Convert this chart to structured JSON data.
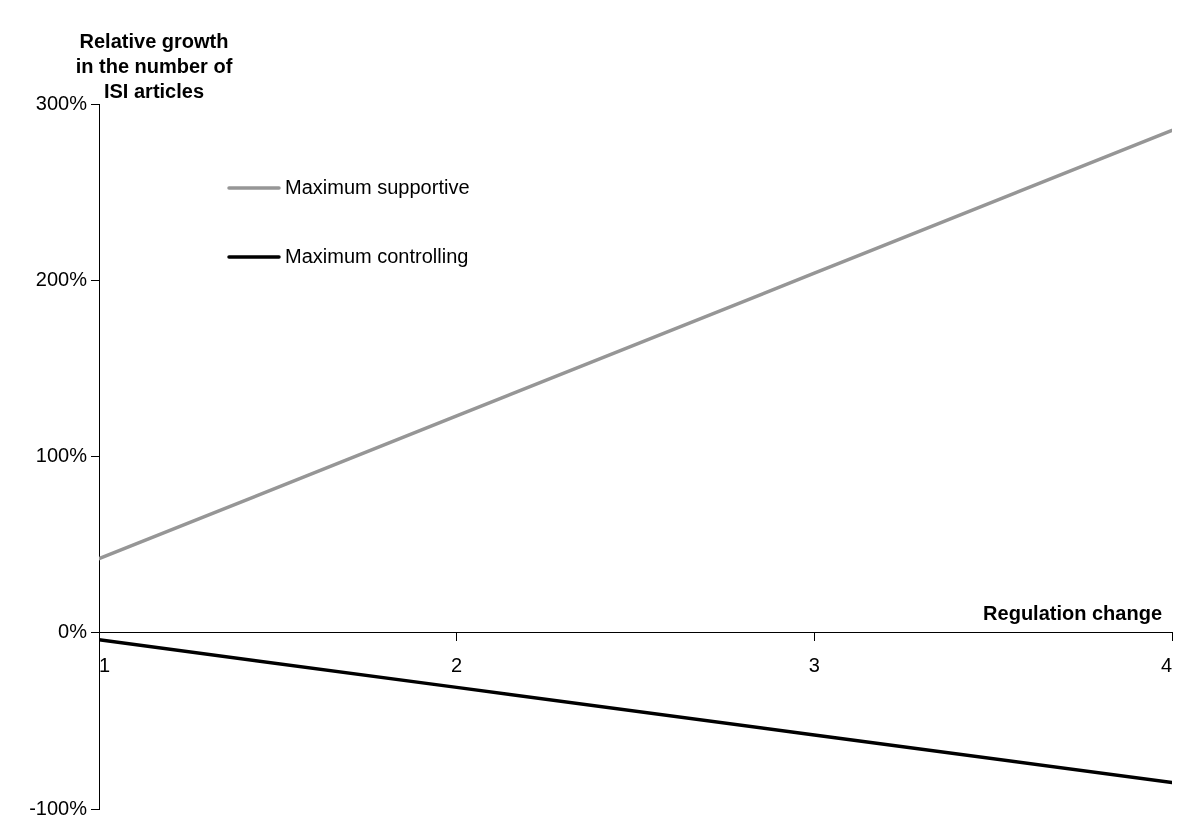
{
  "chart_data": {
    "type": "line",
    "xlabel": "Regulation change",
    "ylabel": "Relative growth in the number of ISI articles",
    "x": [
      1,
      2,
      3,
      4
    ],
    "series": [
      {
        "name": "Maximum supportive",
        "color": "#969696",
        "values": [
          42,
          123,
          204,
          285
        ]
      },
      {
        "name": "Maximum controlling",
        "color": "#000000",
        "values": [
          -4,
          -31,
          -58,
          -85
        ]
      }
    ],
    "xlim": [
      1,
      4
    ],
    "xticks": [
      1,
      2,
      3,
      4
    ],
    "ylim": [
      -100,
      300
    ],
    "yticks": [
      {
        "value": -100,
        "label": "-100%"
      },
      {
        "value": 0,
        "label": "0%"
      },
      {
        "value": 100,
        "label": "100%"
      },
      {
        "value": 200,
        "label": "200%"
      },
      {
        "value": 300,
        "label": "300%"
      }
    ],
    "grid": false,
    "legend": "top left",
    "marker": "none",
    "line_style": "solid"
  }
}
